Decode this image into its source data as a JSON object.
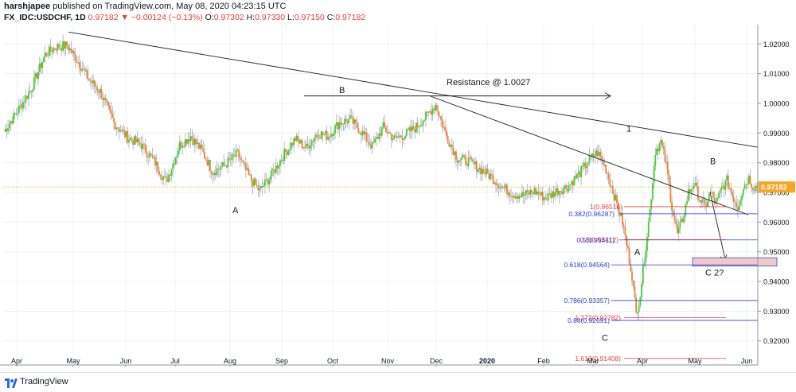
{
  "header": {
    "author": "harshjapee",
    "published_text": "published on TradingView.com, May 08, 2020 04:23:15 UTC",
    "symbol": "FX_IDC:USDCHF, 1D",
    "last": "0.97182",
    "arrow": "▼",
    "change": "−0.00124 (−0.13%)",
    "o_label": "O:",
    "o_value": "0.97302",
    "h_label": "H:",
    "h_value": "0.97330",
    "l_label": "L:",
    "l_value": "0.97150",
    "c_label": "C:",
    "c_value": "0.97182"
  },
  "footer": {
    "brand": "TradingView"
  },
  "colors": {
    "up": "#3ed32f",
    "down": "#f38135",
    "wick": "#9aa0a6",
    "grid": "#eef0f3",
    "current_line": "#f5a623",
    "price_tag": "#f5a623",
    "fib_blue": "#2b3bd6",
    "fib_red": "#e0403f",
    "trend": "#222222",
    "box_fill": "#f2c9c9",
    "box_stroke": "#3a4ec2"
  },
  "chart_data": {
    "type": "candlestick",
    "symbol": "FX_IDC:USDCHF",
    "interval": "1D",
    "ylim": [
      0.9135,
      1.0265
    ],
    "y_ticks": [
      "0.92000",
      "0.93000",
      "0.94000",
      "0.95000",
      "0.96000",
      "0.97000",
      "0.98000",
      "0.99000",
      "1.00000",
      "1.01000",
      "1.02000"
    ],
    "x_ticks": [
      "Apr",
      "May",
      "Jun",
      "Jul",
      "Aug",
      "Sep",
      "Oct",
      "Nov",
      "Dec",
      "2020",
      "Feb",
      "Mar",
      "Apr",
      "May",
      "Jun"
    ],
    "current_price": "0.97182",
    "grid": true,
    "ohlc_anchor_closes": [
      [
        0,
        0.9905
      ],
      [
        10,
        0.9975
      ],
      [
        20,
        1.005
      ],
      [
        30,
        1.0165
      ],
      [
        38,
        1.019
      ],
      [
        46,
        1.0195
      ],
      [
        54,
        1.014
      ],
      [
        62,
        1.008
      ],
      [
        70,
        1.004
      ],
      [
        80,
        0.9935
      ],
      [
        90,
        0.9885
      ],
      [
        100,
        0.986
      ],
      [
        110,
        0.98
      ],
      [
        118,
        0.9735
      ],
      [
        128,
        0.986
      ],
      [
        136,
        0.989
      ],
      [
        144,
        0.984
      ],
      [
        152,
        0.977
      ],
      [
        160,
        0.979
      ],
      [
        170,
        0.983
      ],
      [
        178,
        0.9755
      ],
      [
        186,
        0.9705
      ],
      [
        194,
        0.9755
      ],
      [
        204,
        0.983
      ],
      [
        212,
        0.988
      ],
      [
        220,
        0.985
      ],
      [
        228,
        0.99
      ],
      [
        236,
        0.989
      ],
      [
        244,
        0.9935
      ],
      [
        252,
        0.9945
      ],
      [
        260,
        0.9905
      ],
      [
        268,
        0.9855
      ],
      [
        276,
        0.992
      ],
      [
        284,
        0.988
      ],
      [
        292,
        0.9895
      ],
      [
        300,
        0.992
      ],
      [
        308,
        0.996
      ],
      [
        314,
        0.9995
      ],
      [
        322,
        0.989
      ],
      [
        330,
        0.9815
      ],
      [
        338,
        0.9805
      ],
      [
        346,
        0.978
      ],
      [
        354,
        0.9755
      ],
      [
        362,
        0.972
      ],
      [
        370,
        0.9695
      ],
      [
        378,
        0.969
      ],
      [
        386,
        0.9705
      ],
      [
        394,
        0.968
      ],
      [
        402,
        0.9705
      ],
      [
        410,
        0.972
      ],
      [
        418,
        0.976
      ],
      [
        426,
        0.981
      ],
      [
        432,
        0.9835
      ],
      [
        438,
        0.978
      ],
      [
        442,
        0.972
      ],
      [
        446,
        0.966
      ],
      [
        450,
        0.96
      ],
      [
        454,
        0.95
      ],
      [
        457,
        0.942
      ],
      [
        460,
        0.929
      ],
      [
        463,
        0.936
      ],
      [
        466,
        0.948
      ],
      [
        470,
        0.964
      ],
      [
        474,
        0.984
      ],
      [
        478,
        0.987
      ],
      [
        482,
        0.979
      ],
      [
        486,
        0.965
      ],
      [
        490,
        0.956
      ],
      [
        494,
        0.961
      ],
      [
        498,
        0.97
      ],
      [
        502,
        0.973
      ],
      [
        506,
        0.968
      ],
      [
        510,
        0.965
      ],
      [
        514,
        0.97
      ],
      [
        518,
        0.966
      ],
      [
        522,
        0.971
      ],
      [
        526,
        0.974
      ],
      [
        530,
        0.969
      ],
      [
        534,
        0.965
      ],
      [
        538,
        0.972
      ],
      [
        542,
        0.975
      ],
      [
        545,
        0.972
      ],
      [
        548,
        0.9718
      ]
    ],
    "annotations": {
      "resistance_text": "Resistance @ 1.0027",
      "wave_labels": [
        "A",
        "B",
        "1",
        "A",
        "B",
        "C",
        "C 2?"
      ],
      "fib_levels": [
        {
          "text": "0.382(0.96287)",
          "color": "blue"
        },
        {
          "text": "1(0.96516)",
          "color": "red"
        },
        {
          "text": "0.5(0.95412)",
          "color": "red"
        },
        {
          "text": "0.5(0.95411)",
          "color": "blue"
        },
        {
          "text": "0.618(0.94564)",
          "color": "blue"
        },
        {
          "text": "0.786(0.93357)",
          "color": "blue"
        },
        {
          "text": "1.272(0.92782)",
          "color": "red"
        },
        {
          "text": "0.88(0.92691)",
          "color": "blue"
        },
        {
          "text": "1.618(0.91408)",
          "color": "red"
        }
      ]
    }
  }
}
